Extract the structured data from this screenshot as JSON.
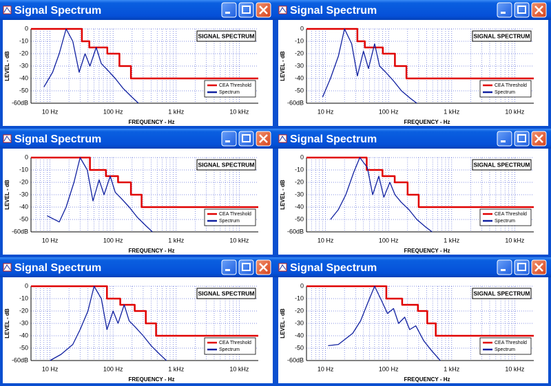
{
  "windows": [
    {
      "title": "Signal Spectrum"
    },
    {
      "title": "Signal Spectrum"
    },
    {
      "title": "Signal Spectrum"
    },
    {
      "title": "Signal Spectrum"
    },
    {
      "title": "Signal Spectrum"
    },
    {
      "title": "Signal Spectrum"
    }
  ],
  "chart_data": [
    {
      "type": "line",
      "title": "SIGNAL SPECTRUM",
      "x_label": "FREQUENCY - Hz",
      "y_label": "LEVEL - dB",
      "xscale": "log",
      "xlim": [
        5,
        20000
      ],
      "xticks": [
        {
          "value": 10,
          "label": "10 Hz"
        },
        {
          "value": 100,
          "label": "100 Hz"
        },
        {
          "value": 1000,
          "label": "1 kHz"
        },
        {
          "value": 10000,
          "label": "10 kHz"
        }
      ],
      "xminor": [
        6,
        7,
        8,
        9,
        20,
        30,
        40,
        50,
        60,
        70,
        80,
        90,
        200,
        300,
        400,
        500,
        600,
        700,
        800,
        900,
        2000,
        3000,
        4000,
        5000,
        6000,
        7000,
        8000,
        9000
      ],
      "ylim": [
        -60,
        0
      ],
      "yticks": [
        0,
        -10,
        -20,
        -30,
        -40,
        -50,
        {
          "value": -60,
          "label": "-60dB"
        }
      ],
      "grid": true,
      "legend": "lower right",
      "series": [
        {
          "name": "CEA Threshold",
          "color": "#e00000",
          "x": [
            5,
            32,
            32,
            42,
            42,
            81,
            81,
            126,
            126,
            192,
            192,
            20000
          ],
          "values": [
            0,
            0,
            -10,
            -10,
            -15,
            -15,
            -20,
            -20,
            -30,
            -30,
            -40,
            -40
          ]
        },
        {
          "name": "Spectrum",
          "color": "#1020a0",
          "x": [
            8,
            11,
            14,
            18,
            23,
            29,
            36,
            43,
            54,
            65,
            81,
            108,
            144,
            198,
            252
          ],
          "values": [
            -47,
            -35,
            -20,
            0,
            -10,
            -35,
            -20,
            -30,
            -15,
            -28,
            -33,
            -40,
            -48,
            -55,
            -60
          ]
        }
      ]
    },
    {
      "type": "line",
      "title": "SIGNAL SPECTRUM",
      "x_label": "FREQUENCY - Hz",
      "y_label": "LEVEL - dB",
      "xscale": "log",
      "xlim": [
        5,
        20000
      ],
      "xticks": [
        {
          "value": 10,
          "label": "10 Hz"
        },
        {
          "value": 100,
          "label": "100 Hz"
        },
        {
          "value": 1000,
          "label": "1 kHz"
        },
        {
          "value": 10000,
          "label": "10 kHz"
        }
      ],
      "xminor": [
        6,
        7,
        8,
        9,
        20,
        30,
        40,
        50,
        60,
        70,
        80,
        90,
        200,
        300,
        400,
        500,
        600,
        700,
        800,
        900,
        2000,
        3000,
        4000,
        5000,
        6000,
        7000,
        8000,
        9000
      ],
      "ylim": [
        -60,
        0
      ],
      "yticks": [
        0,
        -10,
        -20,
        -30,
        -40,
        -50,
        {
          "value": -60,
          "label": "-60dB"
        }
      ],
      "grid": true,
      "legend": "lower right",
      "series": [
        {
          "name": "CEA Threshold",
          "color": "#e00000",
          "x": [
            5,
            32,
            32,
            42,
            42,
            81,
            81,
            126,
            126,
            192,
            192,
            20000
          ],
          "values": [
            0,
            0,
            -10,
            -10,
            -15,
            -15,
            -20,
            -20,
            -30,
            -30,
            -40,
            -40
          ]
        },
        {
          "name": "Spectrum",
          "color": "#1020a0",
          "x": [
            9,
            12,
            16,
            20,
            26,
            32,
            40,
            48,
            60,
            72,
            90,
            120,
            160,
            220,
            280
          ],
          "values": [
            -55,
            -40,
            -22,
            0,
            -12,
            -38,
            -18,
            -32,
            -12,
            -30,
            -35,
            -42,
            -50,
            -56,
            -60
          ]
        }
      ]
    },
    {
      "type": "line",
      "title": "SIGNAL SPECTRUM",
      "x_label": "FREQUENCY - Hz",
      "y_label": "LEVEL - dB",
      "xscale": "log",
      "xlim": [
        5,
        20000
      ],
      "xticks": [
        {
          "value": 10,
          "label": "10 Hz"
        },
        {
          "value": 100,
          "label": "100 Hz"
        },
        {
          "value": 1000,
          "label": "1 kHz"
        },
        {
          "value": 10000,
          "label": "10 kHz"
        }
      ],
      "xminor": [
        6,
        7,
        8,
        9,
        20,
        30,
        40,
        50,
        60,
        70,
        80,
        90,
        200,
        300,
        400,
        500,
        600,
        700,
        800,
        900,
        2000,
        3000,
        4000,
        5000,
        6000,
        7000,
        8000,
        9000
      ],
      "ylim": [
        -60,
        0
      ],
      "yticks": [
        0,
        -10,
        -20,
        -30,
        -40,
        -50,
        {
          "value": -60,
          "label": "-60dB"
        }
      ],
      "grid": true,
      "legend": "lower right",
      "series": [
        {
          "name": "CEA Threshold",
          "color": "#e00000",
          "x": [
            5,
            43,
            43,
            77,
            77,
            120,
            120,
            192,
            192,
            283,
            283,
            20000
          ],
          "values": [
            0,
            0,
            -10,
            -10,
            -15,
            -15,
            -20,
            -20,
            -30,
            -30,
            -40,
            -40
          ]
        },
        {
          "name": "Spectrum",
          "color": "#1020a0",
          "x": [
            9,
            14,
            18,
            24,
            30,
            39,
            48,
            60,
            72,
            90,
            108,
            135,
            180,
            240,
            330,
            420
          ],
          "values": [
            -47,
            -52,
            -40,
            -20,
            0,
            -10,
            -35,
            -18,
            -30,
            -15,
            -28,
            -33,
            -40,
            -48,
            -55,
            -60
          ]
        }
      ]
    },
    {
      "type": "line",
      "title": "SIGNAL SPECTRUM",
      "x_label": "FREQUENCY - Hz",
      "y_label": "LEVEL - dB",
      "xscale": "log",
      "xlim": [
        5,
        20000
      ],
      "xticks": [
        {
          "value": 10,
          "label": "10 Hz"
        },
        {
          "value": 100,
          "label": "100 Hz"
        },
        {
          "value": 1000,
          "label": "1 kHz"
        },
        {
          "value": 10000,
          "label": "10 kHz"
        }
      ],
      "xminor": [
        6,
        7,
        8,
        9,
        20,
        30,
        40,
        50,
        60,
        70,
        80,
        90,
        200,
        300,
        400,
        500,
        600,
        700,
        800,
        900,
        2000,
        3000,
        4000,
        5000,
        6000,
        7000,
        8000,
        9000
      ],
      "ylim": [
        -60,
        0
      ],
      "yticks": [
        0,
        -10,
        -20,
        -30,
        -40,
        -50,
        {
          "value": -60,
          "label": "-60dB"
        }
      ],
      "grid": true,
      "legend": "lower right",
      "series": [
        {
          "name": "CEA Threshold",
          "color": "#e00000",
          "x": [
            5,
            45,
            45,
            80,
            80,
            125,
            125,
            200,
            200,
            300,
            300,
            20000
          ],
          "values": [
            0,
            0,
            -10,
            -10,
            -15,
            -15,
            -20,
            -20,
            -30,
            -30,
            -40,
            -40
          ]
        },
        {
          "name": "Spectrum",
          "color": "#1020a0",
          "x": [
            12,
            16,
            21,
            28,
            35,
            46,
            56,
            70,
            84,
            105,
            126,
            158,
            210,
            280,
            385,
            490
          ],
          "values": [
            -50,
            -42,
            -30,
            -12,
            0,
            -8,
            -30,
            -15,
            -32,
            -20,
            -30,
            -36,
            -42,
            -50,
            -56,
            -60
          ]
        }
      ]
    },
    {
      "type": "line",
      "title": "SIGNAL SPECTRUM",
      "x_label": "FREQUENCY - Hz",
      "y_label": "LEVEL - dB",
      "xscale": "log",
      "xlim": [
        5,
        20000
      ],
      "xticks": [
        {
          "value": 10,
          "label": "10 Hz"
        },
        {
          "value": 100,
          "label": "100 Hz"
        },
        {
          "value": 1000,
          "label": "1 kHz"
        },
        {
          "value": 10000,
          "label": "10 kHz"
        }
      ],
      "xminor": [
        6,
        7,
        8,
        9,
        20,
        30,
        40,
        50,
        60,
        70,
        80,
        90,
        200,
        300,
        400,
        500,
        600,
        700,
        800,
        900,
        2000,
        3000,
        4000,
        5000,
        6000,
        7000,
        8000,
        9000
      ],
      "ylim": [
        -60,
        0
      ],
      "yticks": [
        0,
        -10,
        -20,
        -30,
        -40,
        -50,
        {
          "value": -60,
          "label": "-60dB"
        }
      ],
      "grid": true,
      "legend": "lower right",
      "series": [
        {
          "name": "CEA Threshold",
          "color": "#e00000",
          "x": [
            5,
            80,
            80,
            130,
            130,
            220,
            220,
            330,
            330,
            480,
            480,
            20000
          ],
          "values": [
            0,
            0,
            -10,
            -10,
            -15,
            -15,
            -20,
            -20,
            -30,
            -30,
            -40,
            -40
          ]
        },
        {
          "name": "Spectrum",
          "color": "#1020a0",
          "x": [
            10,
            15,
            23,
            30,
            40,
            50,
            65,
            80,
            100,
            120,
            150,
            180,
            225,
            300,
            400,
            550,
            700
          ],
          "values": [
            -60,
            -55,
            -47,
            -35,
            -20,
            0,
            -10,
            -35,
            -20,
            -30,
            -15,
            -28,
            -33,
            -40,
            -48,
            -55,
            -60
          ]
        }
      ]
    },
    {
      "type": "line",
      "title": "SIGNAL SPECTRUM",
      "x_label": "FREQUENCY - Hz",
      "y_label": "LEVEL - dB",
      "xscale": "log",
      "xlim": [
        5,
        20000
      ],
      "xticks": [
        {
          "value": 10,
          "label": "10 Hz"
        },
        {
          "value": 100,
          "label": "100 Hz"
        },
        {
          "value": 1000,
          "label": "1 kHz"
        },
        {
          "value": 10000,
          "label": "10 kHz"
        }
      ],
      "xminor": [
        6,
        7,
        8,
        9,
        20,
        30,
        40,
        50,
        60,
        70,
        80,
        90,
        200,
        300,
        400,
        500,
        600,
        700,
        800,
        900,
        2000,
        3000,
        4000,
        5000,
        6000,
        7000,
        8000,
        9000
      ],
      "ylim": [
        -60,
        0
      ],
      "yticks": [
        0,
        -10,
        -20,
        -30,
        -40,
        -50,
        {
          "value": -60,
          "label": "-60dB"
        }
      ],
      "grid": true,
      "legend": "lower right",
      "series": [
        {
          "name": "CEA Threshold",
          "color": "#e00000",
          "x": [
            5,
            92,
            92,
            164,
            164,
            292,
            292,
            410,
            410,
            560,
            560,
            20000
          ],
          "values": [
            0,
            0,
            -10,
            -10,
            -15,
            -15,
            -20,
            -20,
            -30,
            -30,
            -40,
            -40
          ]
        },
        {
          "name": "Spectrum",
          "color": "#1020a0",
          "x": [
            11,
            16,
            27,
            36,
            48,
            60,
            78,
            96,
            120,
            144,
            180,
            216,
            270,
            360,
            480,
            660
          ],
          "values": [
            -48,
            -47,
            -38,
            -28,
            -12,
            0,
            -12,
            -22,
            -18,
            -30,
            -25,
            -35,
            -32,
            -44,
            -52,
            -60
          ]
        }
      ]
    }
  ]
}
